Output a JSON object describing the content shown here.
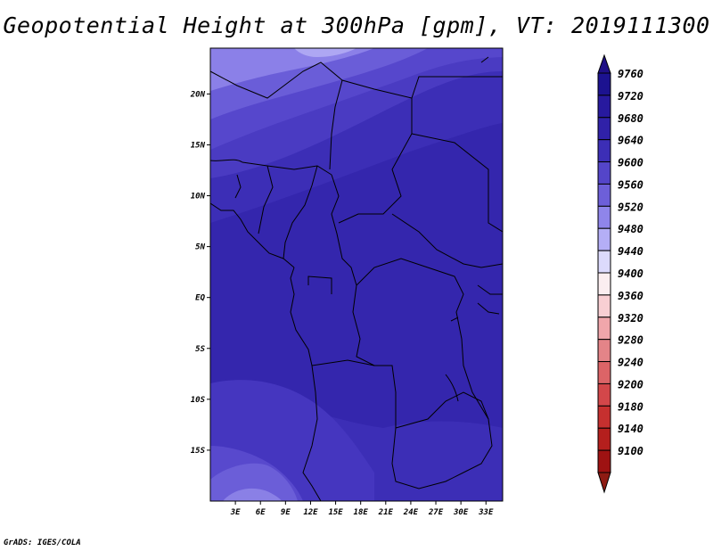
{
  "title": "Geopotential Height at 300hPa [gpm], VT: 2019111300",
  "credit": "GrADS: IGES/COLA",
  "map": {
    "lon_range": [
      0,
      35
    ],
    "lat_range": [
      -20,
      24.5
    ],
    "lat_ticks": [
      {
        "value": 20,
        "label": "20N"
      },
      {
        "value": 15,
        "label": "15N"
      },
      {
        "value": 10,
        "label": "10N"
      },
      {
        "value": 5,
        "label": "5N"
      },
      {
        "value": 0,
        "label": "EQ"
      },
      {
        "value": -5,
        "label": "5S"
      },
      {
        "value": -10,
        "label": "10S"
      },
      {
        "value": -15,
        "label": "15S"
      }
    ],
    "lon_ticks": [
      {
        "value": 3,
        "label": "3E"
      },
      {
        "value": 6,
        "label": "6E"
      },
      {
        "value": 9,
        "label": "9E"
      },
      {
        "value": 12,
        "label": "12E"
      },
      {
        "value": 15,
        "label": "15E"
      },
      {
        "value": 18,
        "label": "18E"
      },
      {
        "value": 21,
        "label": "21E"
      },
      {
        "value": 24,
        "label": "24E"
      },
      {
        "value": 27,
        "label": "27E"
      },
      {
        "value": 30,
        "label": "30E"
      },
      {
        "value": 33,
        "label": "33E"
      }
    ]
  },
  "colorbar": {
    "levels": [
      {
        "label": "9760",
        "color": "#1c1290"
      },
      {
        "label": "9720",
        "color": "#27199e"
      },
      {
        "label": "9680",
        "color": "#3021a8"
      },
      {
        "label": "9640",
        "color": "#3c2eb6"
      },
      {
        "label": "9600",
        "color": "#5445c9"
      },
      {
        "label": "9560",
        "color": "#6d5fd9"
      },
      {
        "label": "9520",
        "color": "#8f85ea"
      },
      {
        "label": "9480",
        "color": "#b4aef6"
      },
      {
        "label": "9440",
        "color": "#dcdafc"
      },
      {
        "label": "9400",
        "color": "#fbeef0"
      },
      {
        "label": "9360",
        "color": "#f8cfd3"
      },
      {
        "label": "9320",
        "color": "#f0a6ab"
      },
      {
        "label": "9280",
        "color": "#e48488"
      },
      {
        "label": "9240",
        "color": "#dc6467"
      },
      {
        "label": "9200",
        "color": "#d3474a"
      },
      {
        "label": "9180",
        "color": "#c6302f"
      },
      {
        "label": "9140",
        "color": "#b41f1d"
      },
      {
        "label": "9100",
        "color": "#9e1212"
      }
    ],
    "top_color": "#1f0f86",
    "bottom_color": "#8e1b13"
  }
}
